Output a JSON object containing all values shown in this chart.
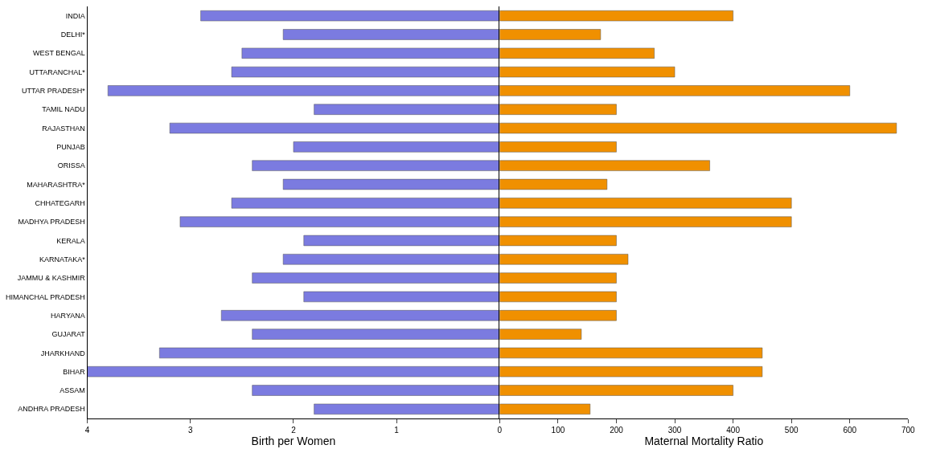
{
  "chart_data": [
    {
      "type": "bar",
      "orientation": "horizontal",
      "xlabel": "Birth per Women",
      "categories": [
        "INDIA",
        "DELHI*",
        "WEST BENGAL",
        "UTTARANCHAL*",
        "UTTAR PRADESH*",
        "TAMIL NADU",
        "RAJASTHAN",
        "PUNJAB",
        "ORISSA",
        "MAHARASHTRA*",
        "CHHATEGARH",
        "MADHYA PRADESH",
        "KERALA",
        "KARNATAKA*",
        "JAMMU & KASHMIR",
        "HIMANCHAL PRADESH",
        "HARYANA",
        "GUJARAT",
        "JHARKHAND",
        "BIHAR",
        "ASSAM",
        "ANDHRA PRADESH"
      ],
      "series": [
        {
          "color": "#7b7be0",
          "values": [
            2.9,
            2.1,
            2.5,
            2.6,
            3.8,
            1.8,
            3.2,
            2.0,
            2.4,
            2.1,
            2.6,
            3.1,
            1.9,
            2.1,
            2.4,
            1.9,
            2.7,
            2.4,
            3.3,
            4.0,
            2.4,
            1.8
          ]
        }
      ],
      "xlim": [
        4,
        0
      ],
      "xticks": [
        4,
        3,
        2,
        1,
        0
      ],
      "grid": false
    },
    {
      "type": "bar",
      "orientation": "horizontal",
      "xlabel": "Maternal Mortality Ratio",
      "categories": [
        null,
        null,
        null,
        null,
        null,
        null,
        null,
        null,
        null,
        null,
        null,
        null,
        null,
        null,
        null,
        null,
        null,
        null,
        null,
        null,
        null,
        null
      ],
      "series": [
        {
          "color": "#f09000",
          "values": [
            400,
            173,
            265,
            300,
            600,
            200,
            680,
            200,
            360,
            184,
            500,
            500,
            200,
            220,
            200,
            200,
            200,
            140,
            450,
            450,
            400,
            155
          ]
        }
      ],
      "xlim": [
        0,
        700
      ],
      "xticks": [
        {
          "value": 0,
          "label": null
        },
        100,
        200,
        300,
        400,
        500,
        600,
        700
      ],
      "tick_labels": "x",
      "grid": false
    }
  ]
}
